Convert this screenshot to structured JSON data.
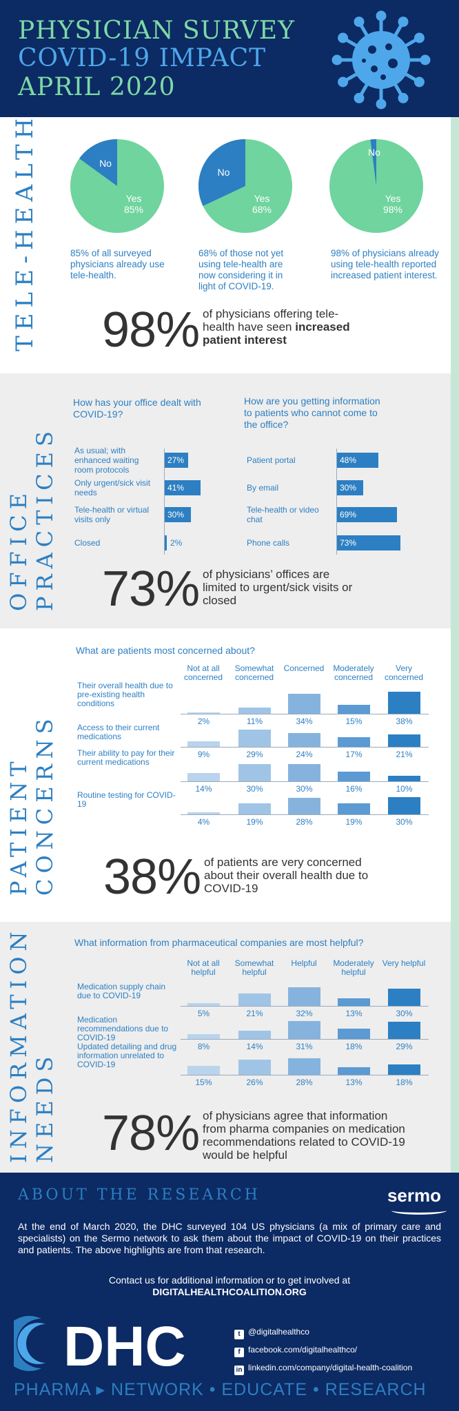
{
  "header": {
    "line1": "PHYSICIAN SURVEY",
    "line2": "COVID-19 IMPACT",
    "line3": "APRIL 2020",
    "icon": "virus-icon"
  },
  "colors": {
    "navy": "#0c2a63",
    "blue": "#2c7fc2",
    "green": "#6fd49e",
    "text": "#333333"
  },
  "telehealth": {
    "title": "TELE-HEALTH",
    "pies": [
      {
        "yes": 85,
        "no": 15,
        "yes_label": "Yes",
        "yes_value": "85%",
        "no_label": "No",
        "caption": "85% of all surveyed physicians already use tele-health."
      },
      {
        "yes": 68,
        "no": 32,
        "yes_label": "Yes",
        "yes_value": "68%",
        "no_label": "No",
        "caption": "68% of those not yet using tele-health are now considering it in light of COVID-19."
      },
      {
        "yes": 98,
        "no": 2,
        "yes_label": "Yes",
        "yes_value": "98%",
        "no_label": "No",
        "caption": "98% of physicians already using tele-health reported increased patient interest."
      }
    ],
    "big_pct": "98%",
    "statement_pre": "of physicians offering tele-health have seen ",
    "statement_bold": "increased patient interest"
  },
  "office": {
    "title_line1": "OFFICE",
    "title_line2": "PRACTICES",
    "chart_data": [
      {
        "type": "bar",
        "title": "How has your office dealt with COVID-19?",
        "categories": [
          "As usual; with enhanced waiting room protocols",
          "Only urgent/sick visit needs",
          "Tele-health or virtual visits only",
          "Closed"
        ],
        "values": [
          27,
          41,
          30,
          2
        ],
        "labels": [
          "27%",
          "41%",
          "30%",
          "2%"
        ]
      },
      {
        "type": "bar",
        "title": "How are you getting information to patients who cannot come to the office?",
        "categories": [
          "Patient portal",
          "By email",
          "Tele-health or video chat",
          "Phone calls"
        ],
        "values": [
          48,
          30,
          69,
          73
        ],
        "labels": [
          "48%",
          "30%",
          "69%",
          "73%"
        ]
      }
    ],
    "big_pct": "73%",
    "statement": "of physicians’ offices are limited to urgent/sick visits or closed"
  },
  "concerns": {
    "title_line1": "PATIENT",
    "title_line2": "CONCERNS",
    "chart_data": {
      "type": "bar",
      "title": "What are patients most concerned about?",
      "categories": [
        "Not at all concerned",
        "Somewhat concerned",
        "Concerned",
        "Moderately concerned",
        "Very concerned"
      ],
      "series": [
        {
          "name": "Their overall health due to pre-existing health conditions",
          "values": [
            2,
            11,
            34,
            15,
            38
          ],
          "labels": [
            "2%",
            "11%",
            "34%",
            "15%",
            "38%"
          ]
        },
        {
          "name": "Access to their current medications",
          "values": [
            9,
            29,
            24,
            17,
            21
          ],
          "labels": [
            "9%",
            "29%",
            "24%",
            "17%",
            "21%"
          ]
        },
        {
          "name": "Their ability to pay for their current medications",
          "values": [
            14,
            30,
            30,
            16,
            10
          ],
          "labels": [
            "14%",
            "30%",
            "30%",
            "16%",
            "10%"
          ]
        },
        {
          "name": "Routine testing for COVID-19",
          "values": [
            4,
            19,
            28,
            19,
            30
          ],
          "labels": [
            "4%",
            "19%",
            "28%",
            "19%",
            "30%"
          ]
        }
      ]
    },
    "big_pct": "38%",
    "statement": "of patients are very concerned about their overall health due to COVID-19"
  },
  "info": {
    "title_line1": "INFORMATION",
    "title_line2": "NEEDS",
    "chart_data": {
      "type": "bar",
      "title": "What information from pharmaceutical companies are most helpful?",
      "categories": [
        "Not at all helpful",
        "Somewhat helpful",
        "Helpful",
        "Moderately helpful",
        "Very helpful"
      ],
      "series": [
        {
          "name": "Medication supply chain due to COVID-19",
          "values": [
            5,
            21,
            32,
            13,
            30
          ],
          "labels": [
            "5%",
            "21%",
            "32%",
            "13%",
            "30%"
          ]
        },
        {
          "name": "Medication recommendations due to COVID-19",
          "values": [
            8,
            14,
            31,
            18,
            29
          ],
          "labels": [
            "8%",
            "14%",
            "31%",
            "18%",
            "29%"
          ]
        },
        {
          "name": "Updated detailing and drug information unrelated to COVID-19",
          "values": [
            15,
            26,
            28,
            13,
            18
          ],
          "labels": [
            "15%",
            "26%",
            "28%",
            "13%",
            "18%"
          ]
        }
      ]
    },
    "big_pct": "78%",
    "statement": "of physicians agree that information from pharma companies on medication recommendations related to COVID-19 would be helpful"
  },
  "about": {
    "title": "ABOUT THE RESEARCH",
    "sermo": "sermo",
    "body": "At the end of March 2020, the DHC surveyed 104 US physicians (a mix of primary care and specialists) on the Sermo network to ask them about the impact of COVID-19 on their practices and patients. The above highlights are from that research.",
    "contact_line": "Contact us for additional information or to get involved at",
    "contact_url": "DIGITALHEALTHCOALITION.ORG",
    "logo_text": "DHC",
    "social": [
      {
        "icon": "twitter-icon",
        "glyph": "t",
        "text": "@digitalhealthco"
      },
      {
        "icon": "facebook-icon",
        "glyph": "f",
        "text": "facebook.com/digitalhealthco/"
      },
      {
        "icon": "linkedin-icon",
        "glyph": "in",
        "text": "linkedin.com/company/digital-health-coalition"
      }
    ],
    "tagline": "PHARMA ▸ NETWORK • EDUCATE • RESEARCH"
  }
}
